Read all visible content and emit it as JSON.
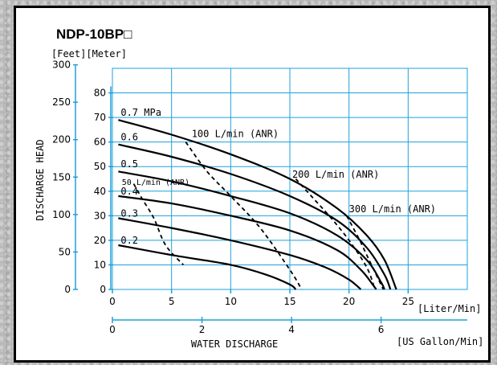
{
  "chart_data": {
    "type": "line",
    "title": "NDP-10BP□",
    "y_unit_label": "[Feet][Meter]",
    "ylabel": "DISCHARGE  HEAD",
    "xlabel": "WATER  DISCHARGE",
    "x_unit_primary": "[Liter/Min]",
    "x_unit_secondary": "[US Gallon/Min]",
    "x_lim": [
      0,
      30
    ],
    "y_lim_meter": [
      0,
      90
    ],
    "x_ticks": [
      0,
      5,
      10,
      15,
      20,
      25
    ],
    "x_ticks_gallon": [
      0,
      2,
      4,
      6
    ],
    "y_ticks_meter": [
      0,
      10,
      20,
      30,
      40,
      50,
      60,
      70,
      80
    ],
    "y_ticks_feet": [
      0,
      50,
      100,
      150,
      200,
      250,
      300
    ],
    "grid": true,
    "series": [
      {
        "name": "0.7 MPa",
        "dashed": false,
        "points": [
          [
            0.5,
            69
          ],
          [
            5,
            63
          ],
          [
            10,
            55
          ],
          [
            15,
            45
          ],
          [
            19,
            33
          ],
          [
            21.5,
            22
          ],
          [
            23,
            12
          ],
          [
            24,
            0
          ]
        ]
      },
      {
        "name": "0.6",
        "dashed": false,
        "points": [
          [
            0.5,
            59
          ],
          [
            5,
            54
          ],
          [
            10,
            47
          ],
          [
            15,
            38
          ],
          [
            19,
            28
          ],
          [
            21.5,
            17
          ],
          [
            23,
            6
          ],
          [
            23.5,
            0
          ]
        ]
      },
      {
        "name": "0.5",
        "dashed": false,
        "points": [
          [
            0.5,
            48
          ],
          [
            5,
            44
          ],
          [
            10,
            38
          ],
          [
            15,
            31
          ],
          [
            19,
            22
          ],
          [
            21.5,
            12
          ],
          [
            22.7,
            3
          ],
          [
            23,
            0
          ]
        ]
      },
      {
        "name": "0.4",
        "dashed": false,
        "points": [
          [
            0.5,
            38
          ],
          [
            5,
            35
          ],
          [
            10,
            30
          ],
          [
            15,
            24
          ],
          [
            19,
            16
          ],
          [
            21,
            8
          ],
          [
            22,
            2
          ],
          [
            22.3,
            0
          ]
        ]
      },
      {
        "name": "0.3",
        "dashed": false,
        "points": [
          [
            0.5,
            29
          ],
          [
            5,
            25
          ],
          [
            10,
            20
          ],
          [
            15,
            14
          ],
          [
            18,
            9
          ],
          [
            20,
            4
          ],
          [
            21,
            0
          ]
        ]
      },
      {
        "name": "0.2",
        "dashed": false,
        "points": [
          [
            0.5,
            18
          ],
          [
            5,
            14
          ],
          [
            10,
            10
          ],
          [
            13,
            6
          ],
          [
            15,
            2
          ],
          [
            15.5,
            0
          ]
        ]
      },
      {
        "name": "50 L/min (ANR)",
        "dashed": true,
        "points": [
          [
            1.8,
            43
          ],
          [
            2.5,
            37
          ],
          [
            3.5,
            29
          ],
          [
            4.5,
            18
          ],
          [
            6,
            10
          ]
        ]
      },
      {
        "name": "100 L/min (ANR)",
        "dashed": true,
        "points": [
          [
            6.2,
            60
          ],
          [
            8,
            48
          ],
          [
            10,
            38
          ],
          [
            12.5,
            25
          ],
          [
            15,
            8
          ],
          [
            16,
            0
          ]
        ]
      },
      {
        "name": "200 L/min (ANR)",
        "dashed": true,
        "points": [
          [
            15.5,
            45
          ],
          [
            17,
            37
          ],
          [
            18.5,
            29
          ],
          [
            20,
            20
          ],
          [
            21.5,
            9
          ],
          [
            22.2,
            0
          ]
        ]
      },
      {
        "name": "300 L/min (ANR)",
        "dashed": true,
        "points": [
          [
            19.8,
            30
          ],
          [
            20.8,
            21
          ],
          [
            21.7,
            12
          ],
          [
            22.5,
            4
          ],
          [
            22.9,
            0
          ]
        ]
      }
    ],
    "curve_labels": [
      "0.7 MPa",
      "0.6",
      "0.5",
      "0.4",
      "0.3",
      "0.2"
    ],
    "flow_labels": [
      "100 L/min (ANR)",
      "200 L/min (ANR)",
      "300 L/min (ANR)",
      "50 L/min (ANR)"
    ]
  }
}
